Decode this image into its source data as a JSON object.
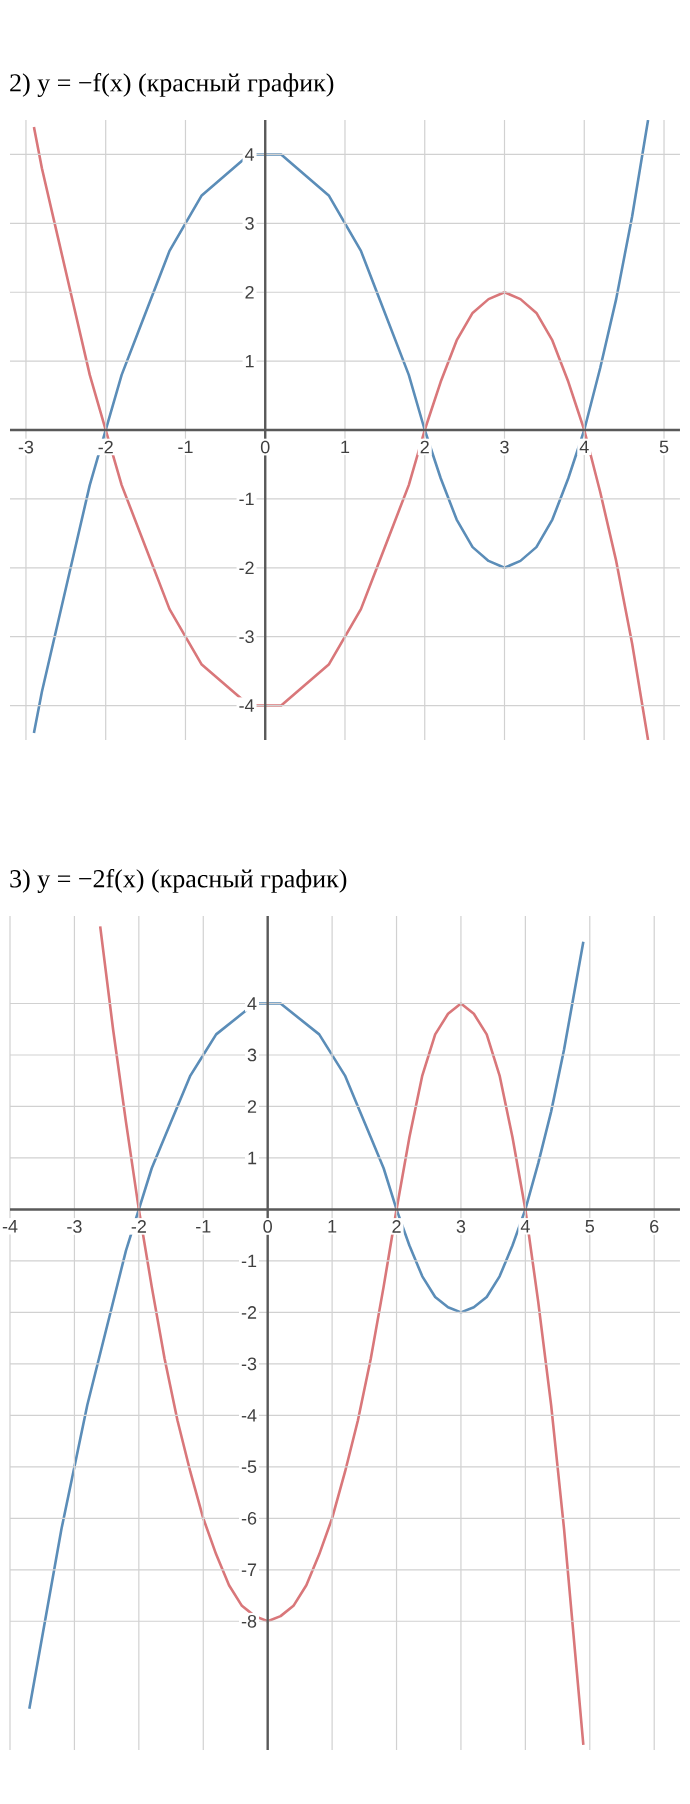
{
  "chart_data": [
    {
      "type": "line",
      "title": "2) y = −f(x) (красный график)",
      "xlim": [
        -3.2,
        5.2
      ],
      "ylim": [
        -4.5,
        4.5
      ],
      "xticks": [
        -3,
        -2,
        -1,
        0,
        1,
        2,
        3,
        4,
        5
      ],
      "yticks": [
        -4,
        -3,
        -2,
        -1,
        1,
        2,
        3,
        4
      ],
      "grid": true,
      "series": [
        {
          "color": "#5b8db8",
          "x": [
            -2.9,
            -2.8,
            -2.6,
            -2.4,
            -2.2,
            -2.0,
            -1.8,
            -1.6,
            -1.4,
            -1.2,
            -1.0,
            -0.8,
            -0.6,
            -0.4,
            -0.2,
            0,
            0.2,
            0.4,
            0.6,
            0.8,
            1.0,
            1.2,
            1.4,
            1.6,
            1.8,
            2.0,
            2.2,
            2.4,
            2.6,
            2.8,
            3.0,
            3.2,
            3.4,
            3.6,
            3.8,
            4.0,
            4.2,
            4.4,
            4.6,
            4.8
          ],
          "values": [
            -4.4,
            -3.8,
            -2.8,
            -1.8,
            -0.8,
            0,
            0.8,
            1.4,
            2,
            2.6,
            3,
            3.4,
            3.6,
            3.8,
            4,
            4,
            4,
            3.8,
            3.6,
            3.4,
            3,
            2.6,
            2,
            1.4,
            0.8,
            0,
            -0.7,
            -1.3,
            -1.7,
            -1.9,
            -2,
            -1.9,
            -1.7,
            -1.3,
            -0.7,
            0,
            0.9,
            1.9,
            3.1,
            4.5
          ]
        },
        {
          "color": "#d9777a",
          "x": [
            -2.9,
            -2.8,
            -2.6,
            -2.4,
            -2.2,
            -2.0,
            -1.8,
            -1.6,
            -1.4,
            -1.2,
            -1.0,
            -0.8,
            -0.6,
            -0.4,
            -0.2,
            0,
            0.2,
            0.4,
            0.6,
            0.8,
            1.0,
            1.2,
            1.4,
            1.6,
            1.8,
            2.0,
            2.2,
            2.4,
            2.6,
            2.8,
            3.0,
            3.2,
            3.4,
            3.6,
            3.8,
            4.0,
            4.2,
            4.4,
            4.6,
            4.8
          ],
          "values": [
            4.4,
            3.8,
            2.8,
            1.8,
            0.8,
            0,
            -0.8,
            -1.4,
            -2,
            -2.6,
            -3,
            -3.4,
            -3.6,
            -3.8,
            -4,
            -4,
            -4,
            -3.8,
            -3.6,
            -3.4,
            -3,
            -2.6,
            -2,
            -1.4,
            -0.8,
            0,
            0.7,
            1.3,
            1.7,
            1.9,
            2,
            1.9,
            1.7,
            1.3,
            0.7,
            0,
            -0.9,
            -1.9,
            -3.1,
            -4.5
          ]
        }
      ]
    },
    {
      "type": "line",
      "title": "3) y = −2f(x) (красный график)",
      "xlim": [
        -4,
        6.4
      ],
      "ylim": [
        -10.5,
        5.7
      ],
      "xticks": [
        -4,
        -3,
        -2,
        -1,
        0,
        1,
        2,
        3,
        4,
        5,
        6
      ],
      "yticks": [
        -8,
        -7,
        -6,
        -5,
        -4,
        -3,
        -2,
        -1,
        1,
        2,
        3,
        4
      ],
      "grid": true,
      "series": [
        {
          "color": "#5b8db8",
          "x": [
            -3.7,
            -3.6,
            -3.4,
            -3.2,
            -3.0,
            -2.8,
            -2.6,
            -2.4,
            -2.2,
            -2.0,
            -1.8,
            -1.6,
            -1.4,
            -1.2,
            -1.0,
            -0.8,
            -0.6,
            -0.4,
            -0.2,
            0,
            0.2,
            0.4,
            0.6,
            0.8,
            1.0,
            1.2,
            1.4,
            1.6,
            1.8,
            2.0,
            2.2,
            2.4,
            2.6,
            2.8,
            3.0,
            3.2,
            3.4,
            3.6,
            3.8,
            4.0,
            4.2,
            4.4,
            4.6,
            4.8,
            4.9
          ],
          "values": [
            -9.7,
            -9,
            -7.6,
            -6.2,
            -5,
            -3.8,
            -2.8,
            -1.8,
            -0.8,
            0,
            0.8,
            1.4,
            2,
            2.6,
            3,
            3.4,
            3.6,
            3.8,
            4,
            4,
            4,
            3.8,
            3.6,
            3.4,
            3,
            2.6,
            2,
            1.4,
            0.8,
            0,
            -0.7,
            -1.3,
            -1.7,
            -1.9,
            -2,
            -1.9,
            -1.7,
            -1.3,
            -0.7,
            0,
            0.9,
            1.9,
            3.1,
            4.5,
            5.2
          ]
        },
        {
          "color": "#d9777a",
          "x": [
            -2.6,
            -2.4,
            -2.2,
            -2.0,
            -1.8,
            -1.6,
            -1.4,
            -1.2,
            -1.0,
            -0.8,
            -0.6,
            -0.4,
            -0.2,
            0,
            0.2,
            0.4,
            0.6,
            0.8,
            1.0,
            1.2,
            1.4,
            1.6,
            1.8,
            2.0,
            2.2,
            2.4,
            2.6,
            2.8,
            3.0,
            3.2,
            3.4,
            3.6,
            3.8,
            4.0,
            4.2,
            4.4,
            4.6,
            4.8,
            4.9
          ],
          "values": [
            5.5,
            3.5,
            1.7,
            0,
            -1.5,
            -2.9,
            -4.1,
            -5.1,
            -6,
            -6.7,
            -7.3,
            -7.7,
            -7.9,
            -8,
            -7.9,
            -7.7,
            -7.3,
            -6.7,
            -6,
            -5.1,
            -4.1,
            -2.9,
            -1.5,
            0,
            1.4,
            2.6,
            3.4,
            3.8,
            4,
            3.8,
            3.4,
            2.6,
            1.4,
            0,
            -1.8,
            -3.8,
            -6.2,
            -9,
            -10.4
          ]
        }
      ]
    }
  ]
}
